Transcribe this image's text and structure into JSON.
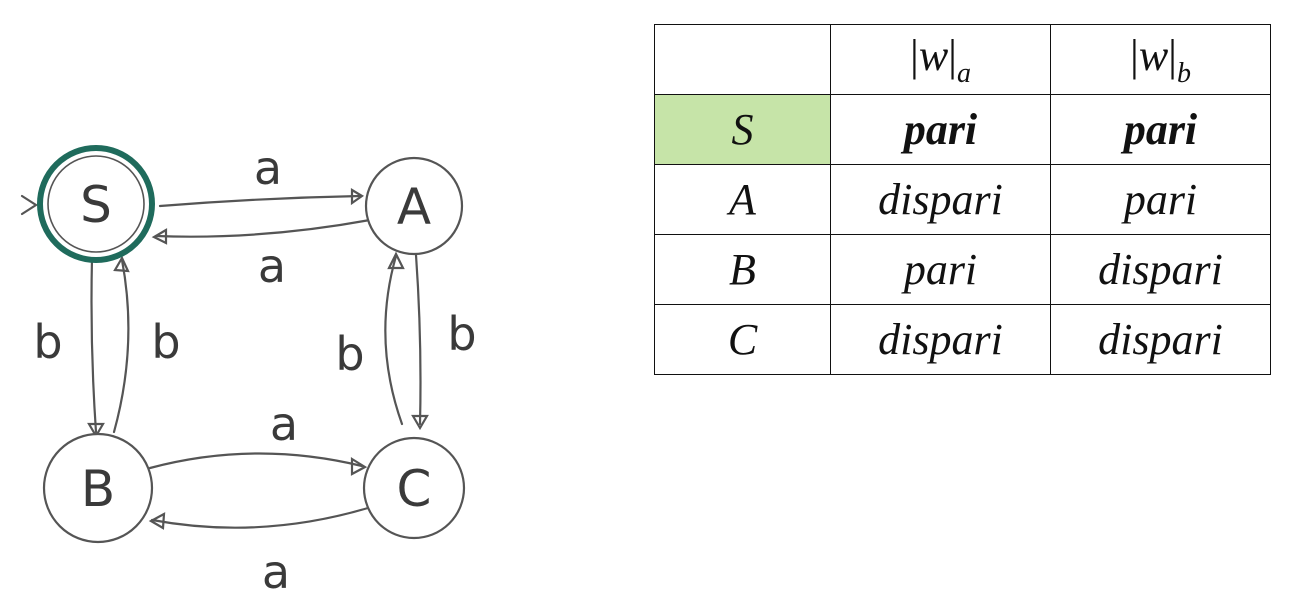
{
  "diagram": {
    "start_marker": ">",
    "nodes": [
      {
        "id": "S",
        "label": "S",
        "initial": true,
        "accepting": true
      },
      {
        "id": "A",
        "label": "A"
      },
      {
        "id": "B",
        "label": "B"
      },
      {
        "id": "C",
        "label": "C"
      }
    ],
    "edges": [
      {
        "from": "S",
        "to": "A",
        "label": "a"
      },
      {
        "from": "A",
        "to": "S",
        "label": "a"
      },
      {
        "from": "S",
        "to": "B",
        "label": "b"
      },
      {
        "from": "B",
        "to": "S",
        "label": "b"
      },
      {
        "from": "A",
        "to": "C",
        "label": "b"
      },
      {
        "from": "C",
        "to": "A",
        "label": "b"
      },
      {
        "from": "B",
        "to": "C",
        "label": "a"
      },
      {
        "from": "C",
        "to": "B",
        "label": "a"
      }
    ],
    "colors": {
      "accepting_ring": "#1f6b5c",
      "stroke": "#555555",
      "highlight": "#c6e4a8"
    }
  },
  "table": {
    "headers": [
      {
        "var": "w",
        "sub": "a"
      },
      {
        "var": "w",
        "sub": "b"
      }
    ],
    "rows": [
      {
        "state": "S",
        "a": "pari",
        "b": "pari",
        "highlight": true,
        "bold": true
      },
      {
        "state": "A",
        "a": "dispari",
        "b": "pari"
      },
      {
        "state": "B",
        "a": "pari",
        "b": "dispari"
      },
      {
        "state": "C",
        "a": "dispari",
        "b": "dispari"
      }
    ]
  }
}
